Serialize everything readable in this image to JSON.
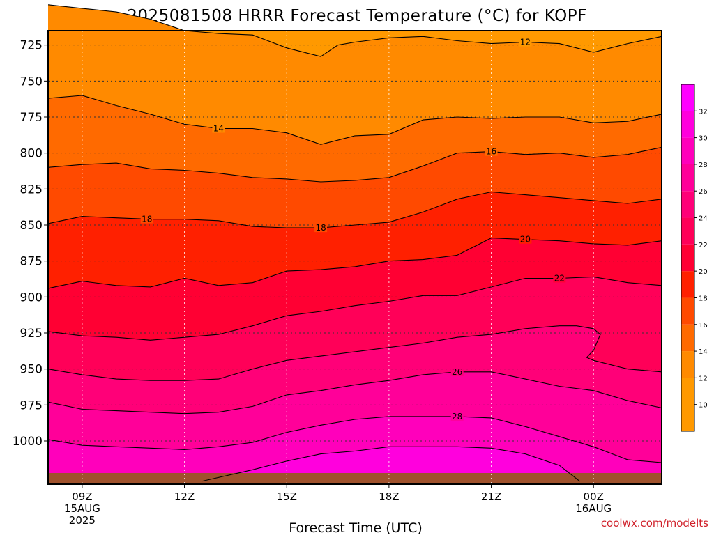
{
  "chart_data": {
    "type": "heatmap",
    "title": "2025081508 HRRR Forecast Temperature (°C) for KOPF",
    "xlabel": "Forecast Time (UTC)",
    "ylabel": "",
    "credit": "coolwx.com/modelts",
    "x_range_hours": [
      8,
      26
    ],
    "y_range_mb": [
      1030,
      715
    ],
    "y_ticks": [
      {
        "value": 725,
        "label": "725"
      },
      {
        "value": 750,
        "label": "750"
      },
      {
        "value": 775,
        "label": "775"
      },
      {
        "value": 800,
        "label": "800"
      },
      {
        "value": 825,
        "label": "825"
      },
      {
        "value": 850,
        "label": "850"
      },
      {
        "value": 875,
        "label": "875"
      },
      {
        "value": 900,
        "label": "900"
      },
      {
        "value": 925,
        "label": "925"
      },
      {
        "value": 950,
        "label": "950"
      },
      {
        "value": 975,
        "label": "975"
      },
      {
        "value": 1000,
        "label": "1000"
      }
    ],
    "x_ticks": [
      {
        "hour": 9,
        "label": "09Z",
        "date": "15AUG",
        "year": "2025"
      },
      {
        "hour": 12,
        "label": "12Z",
        "date": "",
        "year": ""
      },
      {
        "hour": 15,
        "label": "15Z",
        "date": "",
        "year": ""
      },
      {
        "hour": 18,
        "label": "18Z",
        "date": "",
        "year": ""
      },
      {
        "hour": 21,
        "label": "21Z",
        "date": "",
        "year": ""
      },
      {
        "hour": 24,
        "label": "00Z",
        "date": "16AUG",
        "year": ""
      }
    ],
    "grid": true,
    "surface_color": "#a0522d",
    "colorbar": {
      "min": 8,
      "max": 34,
      "ticks": [
        "10",
        "12",
        "14",
        "16",
        "18",
        "20",
        "22",
        "24",
        "26",
        "28",
        "30",
        "32"
      ],
      "bands": [
        {
          "from": 8,
          "to": 12,
          "color": "#ff9900"
        },
        {
          "from": 12,
          "to": 14,
          "color": "#ff8a00"
        },
        {
          "from": 14,
          "to": 16,
          "color": "#ff6a00"
        },
        {
          "from": 16,
          "to": 18,
          "color": "#ff4a00"
        },
        {
          "from": 18,
          "to": 20,
          "color": "#ff2000"
        },
        {
          "from": 20,
          "to": 22,
          "color": "#ff0033"
        },
        {
          "from": 22,
          "to": 24,
          "color": "#ff0058"
        },
        {
          "from": 24,
          "to": 26,
          "color": "#ff0078"
        },
        {
          "from": 26,
          "to": 28,
          "color": "#ff0099"
        },
        {
          "from": 28,
          "to": 30,
          "color": "#ff00bb"
        },
        {
          "from": 30,
          "to": 32,
          "color": "#ff00dd"
        },
        {
          "from": 32,
          "to": 34,
          "color": "#ff00ff"
        }
      ]
    },
    "contours": [
      {
        "temp": 12,
        "label": "12",
        "label_hour": 22.0,
        "points": [
          [
            8,
            697
          ],
          [
            10,
            702
          ],
          [
            11,
            707
          ],
          [
            12,
            715
          ],
          [
            13,
            717
          ],
          [
            14,
            718
          ],
          [
            15,
            727
          ],
          [
            16,
            733
          ],
          [
            16.5,
            725
          ],
          [
            17,
            723
          ],
          [
            18,
            720
          ],
          [
            19,
            719
          ],
          [
            20,
            722
          ],
          [
            21,
            724
          ],
          [
            22,
            723
          ],
          [
            23,
            724
          ],
          [
            24,
            730
          ],
          [
            25,
            724
          ],
          [
            26,
            719
          ]
        ]
      },
      {
        "temp": 14,
        "label": "14",
        "label_hour": 13.0,
        "points": [
          [
            8,
            762
          ],
          [
            9,
            760
          ],
          [
            10,
            767
          ],
          [
            11,
            773
          ],
          [
            12,
            780
          ],
          [
            13,
            783
          ],
          [
            14,
            783
          ],
          [
            15,
            786
          ],
          [
            16,
            794
          ],
          [
            17,
            788
          ],
          [
            18,
            787
          ],
          [
            19,
            777
          ],
          [
            20,
            775
          ],
          [
            21,
            776
          ],
          [
            22,
            775
          ],
          [
            23,
            775
          ],
          [
            24,
            779
          ],
          [
            25,
            778
          ],
          [
            26,
            773
          ]
        ]
      },
      {
        "temp": 16,
        "label": "16",
        "label_hour": 21.0,
        "points": [
          [
            8,
            810
          ],
          [
            9,
            808
          ],
          [
            10,
            807
          ],
          [
            11,
            811
          ],
          [
            12,
            812
          ],
          [
            13,
            814
          ],
          [
            14,
            817
          ],
          [
            15,
            818
          ],
          [
            16,
            820
          ],
          [
            17,
            819
          ],
          [
            18,
            817
          ],
          [
            19,
            809
          ],
          [
            20,
            800
          ],
          [
            21,
            799
          ],
          [
            22,
            801
          ],
          [
            23,
            800
          ],
          [
            24,
            803
          ],
          [
            25,
            801
          ],
          [
            26,
            796
          ]
        ]
      },
      {
        "temp": 18,
        "label": "18",
        "label_hour": 10.9,
        "points": [
          [
            8,
            849
          ],
          [
            9,
            844
          ],
          [
            10,
            845
          ],
          [
            11,
            846
          ],
          [
            12,
            846
          ],
          [
            13,
            847
          ],
          [
            14,
            851
          ],
          [
            15,
            852
          ],
          [
            16,
            852
          ],
          [
            17,
            850
          ],
          [
            18,
            848
          ],
          [
            19,
            841
          ],
          [
            20,
            832
          ],
          [
            21,
            827
          ],
          [
            22,
            829
          ],
          [
            23,
            831
          ],
          [
            24,
            833
          ],
          [
            25,
            835
          ],
          [
            26,
            832
          ]
        ]
      },
      {
        "temp": 18,
        "label": "18",
        "label_hour": 16.0,
        "points": []
      },
      {
        "temp": 20,
        "label": "20",
        "label_hour": 22.0,
        "points": [
          [
            8,
            894
          ],
          [
            9,
            889
          ],
          [
            10,
            892
          ],
          [
            11,
            893
          ],
          [
            12,
            887
          ],
          [
            13,
            892
          ],
          [
            14,
            890
          ],
          [
            15,
            882
          ],
          [
            16,
            881
          ],
          [
            17,
            879
          ],
          [
            18,
            875
          ],
          [
            19,
            874
          ],
          [
            20,
            871
          ],
          [
            21,
            859
          ],
          [
            22,
            860
          ],
          [
            23,
            861
          ],
          [
            24,
            863
          ],
          [
            25,
            864
          ],
          [
            26,
            861
          ]
        ]
      },
      {
        "temp": 22,
        "label": "22",
        "label_hour": 23.0,
        "points": [
          [
            8,
            924
          ],
          [
            9,
            927
          ],
          [
            10,
            928
          ],
          [
            11,
            930
          ],
          [
            12,
            928
          ],
          [
            13,
            926
          ],
          [
            14,
            920
          ],
          [
            15,
            913
          ],
          [
            16,
            910
          ],
          [
            17,
            906
          ],
          [
            18,
            903
          ],
          [
            19,
            899
          ],
          [
            20,
            899
          ],
          [
            21,
            893
          ],
          [
            22,
            887
          ],
          [
            23,
            887
          ],
          [
            24,
            886
          ],
          [
            25,
            890
          ],
          [
            26,
            892
          ]
        ]
      },
      {
        "temp": 24,
        "label": "",
        "label_hour": 0,
        "points": [
          [
            8,
            950
          ],
          [
            9,
            954
          ],
          [
            10,
            957
          ],
          [
            11,
            958
          ],
          [
            12,
            958
          ],
          [
            13,
            957
          ],
          [
            14,
            950
          ],
          [
            15,
            944
          ],
          [
            16,
            941
          ],
          [
            17,
            938
          ],
          [
            18,
            935
          ],
          [
            19,
            932
          ],
          [
            20,
            928
          ],
          [
            21,
            926
          ],
          [
            22,
            922
          ],
          [
            23,
            920
          ],
          [
            23.5,
            920
          ],
          [
            24,
            922
          ],
          [
            24.2,
            926
          ],
          [
            24,
            937
          ],
          [
            23.8,
            942
          ],
          [
            24,
            944
          ],
          [
            25,
            950
          ],
          [
            26,
            952
          ]
        ]
      },
      {
        "temp": 26,
        "label": "26",
        "label_hour": 20.0,
        "points": [
          [
            8,
            973
          ],
          [
            9,
            978
          ],
          [
            10,
            979
          ],
          [
            11,
            980
          ],
          [
            12,
            981
          ],
          [
            13,
            980
          ],
          [
            14,
            976
          ],
          [
            15,
            968
          ],
          [
            16,
            965
          ],
          [
            17,
            961
          ],
          [
            18,
            958
          ],
          [
            19,
            954
          ],
          [
            20,
            952
          ],
          [
            21,
            952
          ],
          [
            22,
            957
          ],
          [
            23,
            962
          ],
          [
            24,
            965
          ],
          [
            25,
            972
          ],
          [
            26,
            977
          ]
        ]
      },
      {
        "temp": 28,
        "label": "28",
        "label_hour": 20.0,
        "points": [
          [
            8,
            999
          ],
          [
            9,
            1003
          ],
          [
            10,
            1004
          ],
          [
            11,
            1005
          ],
          [
            12,
            1006
          ],
          [
            13,
            1004
          ],
          [
            14,
            1001
          ],
          [
            15,
            994
          ],
          [
            16,
            989
          ],
          [
            17,
            985
          ],
          [
            18,
            983
          ],
          [
            19,
            983
          ],
          [
            20,
            983
          ],
          [
            21,
            984
          ],
          [
            22,
            990
          ],
          [
            23,
            997
          ],
          [
            24,
            1004
          ],
          [
            25,
            1013
          ],
          [
            26,
            1015
          ]
        ]
      },
      {
        "temp": 30,
        "label": "",
        "label_hour": 0,
        "points": [
          [
            12.5,
            1028
          ],
          [
            14,
            1020
          ],
          [
            15,
            1014
          ],
          [
            16,
            1009
          ],
          [
            17,
            1007
          ],
          [
            18,
            1004
          ],
          [
            19,
            1004
          ],
          [
            20,
            1004
          ],
          [
            21,
            1005
          ],
          [
            22,
            1009
          ],
          [
            23,
            1017
          ],
          [
            23.6,
            1028
          ]
        ]
      }
    ]
  }
}
